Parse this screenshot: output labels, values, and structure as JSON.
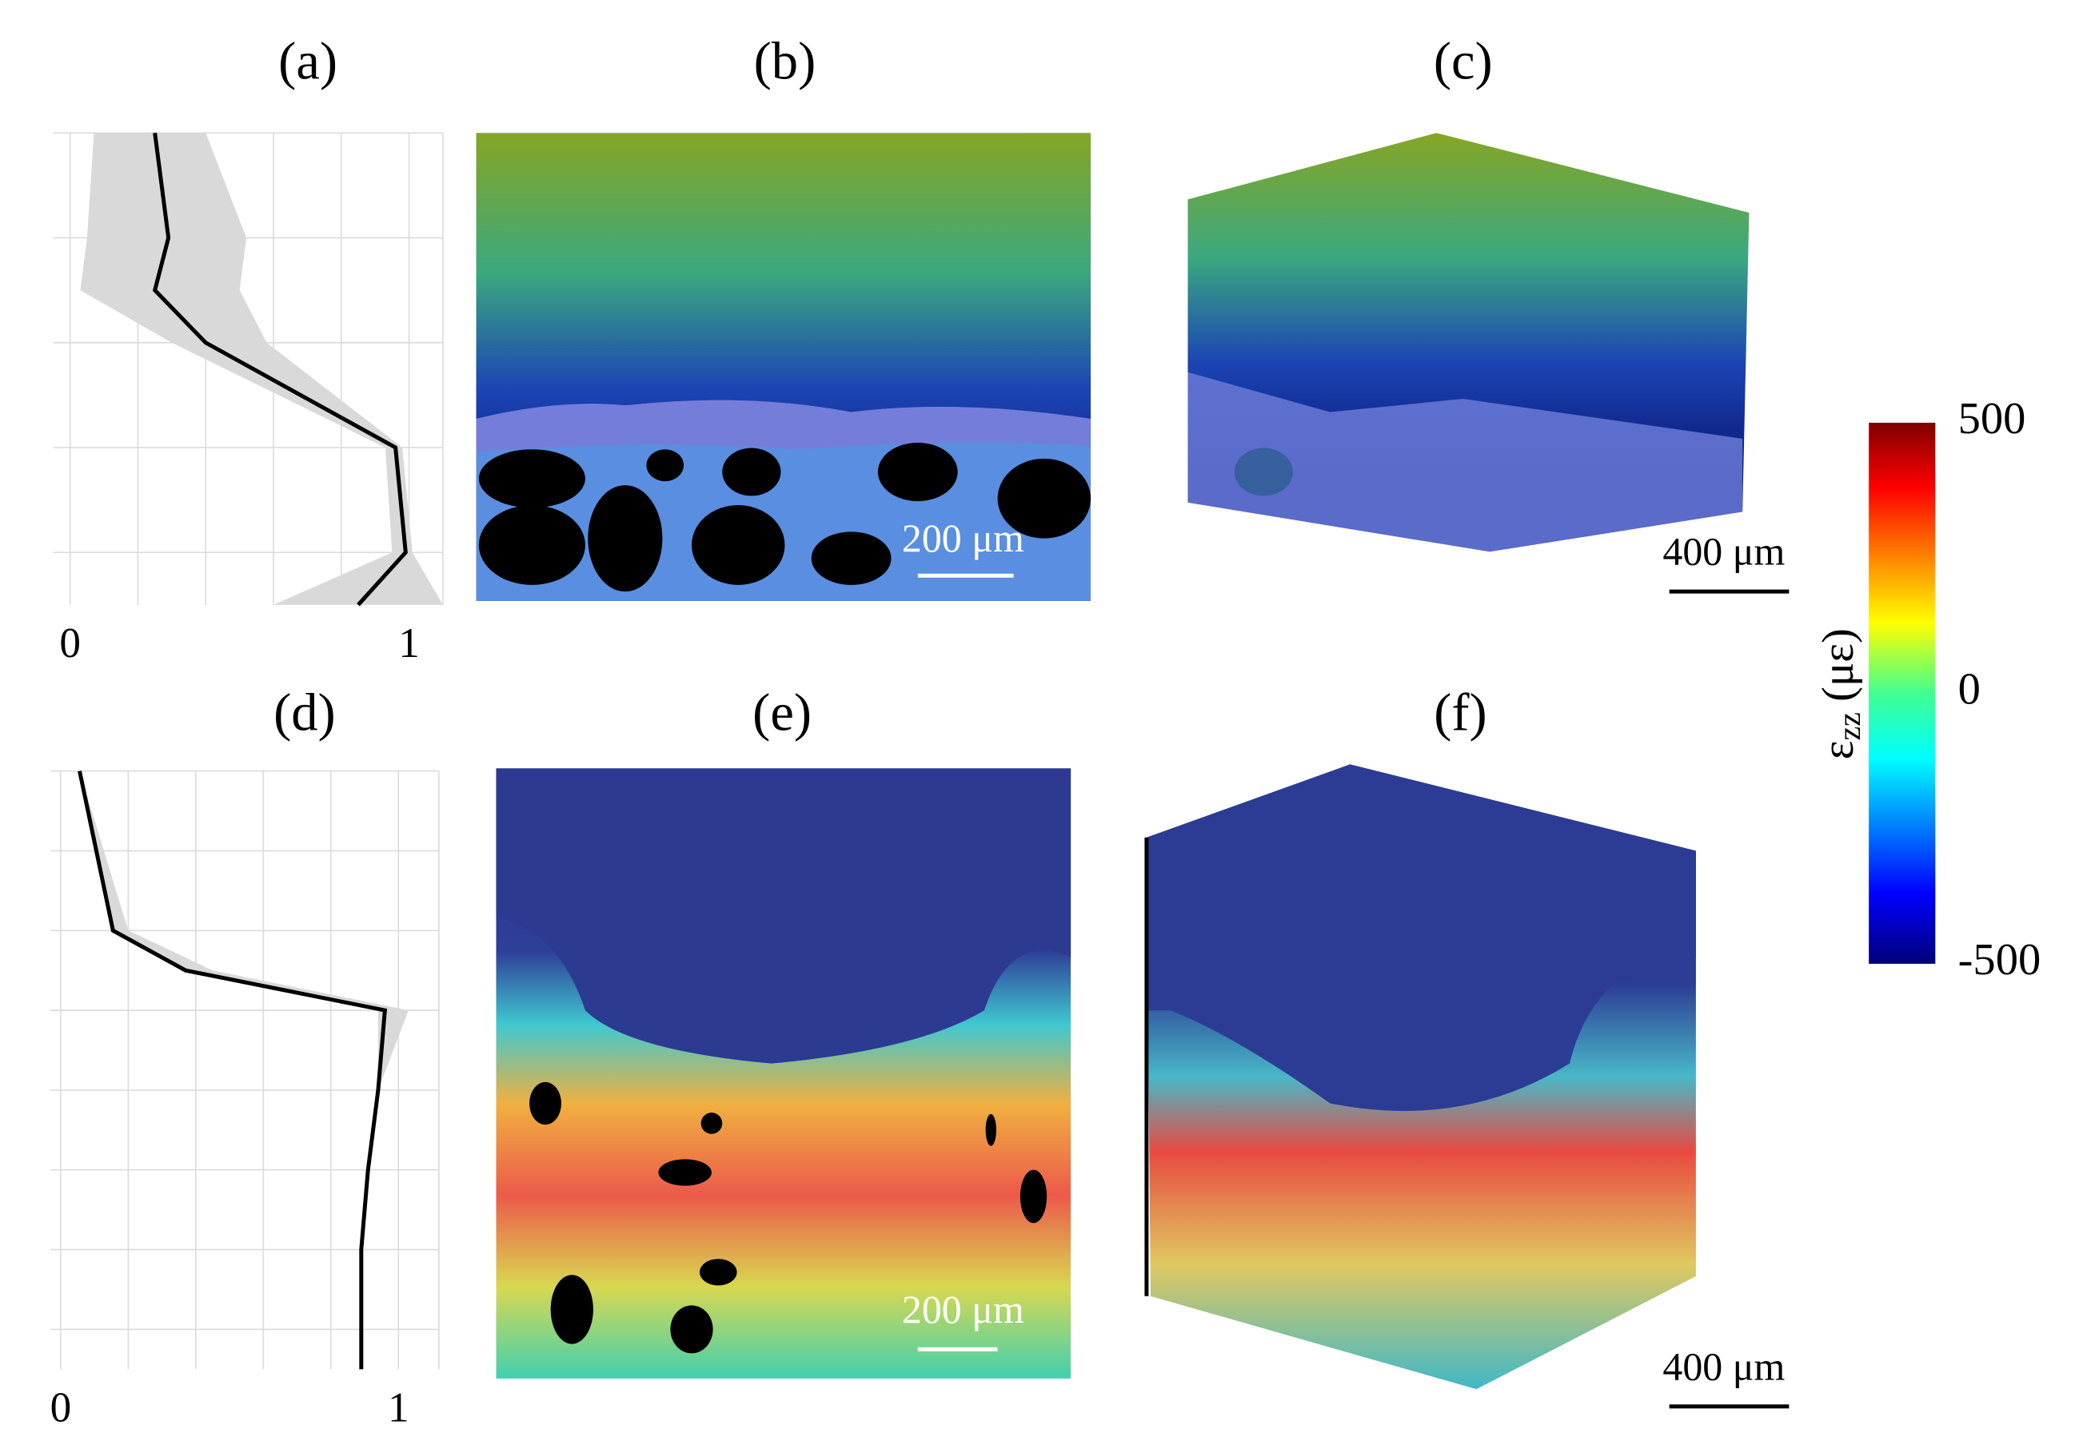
{
  "chart_data": [
    {
      "type": "line",
      "title": "(a)",
      "color": "#000000",
      "band_color": "#d9d9d9",
      "xlim": [
        -0.05,
        1.1
      ],
      "xticks": [
        0,
        1
      ],
      "xgrid": [
        0,
        0.2,
        0.4,
        0.6,
        0.8,
        1,
        1.1
      ],
      "ylim": [
        0,
        4.5
      ],
      "ygrid": [
        0,
        1,
        2,
        3,
        4
      ],
      "y": [
        0,
        1,
        1.5,
        2,
        3,
        4,
        4.5
      ],
      "values": [
        0.25,
        0.29,
        0.25,
        0.4,
        0.96,
        0.99,
        0.85
      ],
      "band_lower": [
        0.07,
        0.05,
        0.03,
        0.3,
        0.93,
        0.95,
        0.6
      ],
      "band_upper": [
        0.4,
        0.52,
        0.5,
        0.58,
        0.98,
        1.01,
        1.1
      ]
    },
    {
      "type": "line",
      "title": "(d)",
      "color": "#000000",
      "band_color": "#d9d9d9",
      "xlim": [
        -0.03,
        1.12
      ],
      "xticks": [
        0,
        1
      ],
      "xgrid": [
        0,
        0.2,
        0.4,
        0.6,
        0.8,
        1,
        1.12
      ],
      "ylim": [
        0,
        7.5
      ],
      "ygrid": [
        0,
        1,
        2,
        3,
        4,
        5,
        6,
        7
      ],
      "y": [
        0,
        2,
        2.5,
        3,
        4,
        5,
        6,
        7.5
      ],
      "values": [
        0.056,
        0.155,
        0.37,
        0.96,
        0.94,
        0.91,
        0.89,
        0.89
      ],
      "band_lower": [
        0.056,
        0.15,
        0.36,
        0.94,
        0.94,
        0.91,
        0.89,
        0.89
      ],
      "band_upper": [
        0.056,
        0.2,
        0.45,
        1.03,
        0.94,
        0.91,
        0.89,
        0.89
      ]
    }
  ],
  "panels": [
    {
      "label": "(b)",
      "scale_bar": "200 μm"
    },
    {
      "label": "(c)",
      "scale_bar": "400 μm"
    },
    {
      "label": "(e)",
      "scale_bar": "200 μm"
    },
    {
      "label": "(f)",
      "scale_bar": "400 μm"
    }
  ],
  "colorbar": {
    "symbol": "ε",
    "subscript": "zz",
    "unit": "(με)",
    "lim": [
      -500,
      500
    ],
    "ticks": [
      500,
      0,
      -500
    ]
  }
}
